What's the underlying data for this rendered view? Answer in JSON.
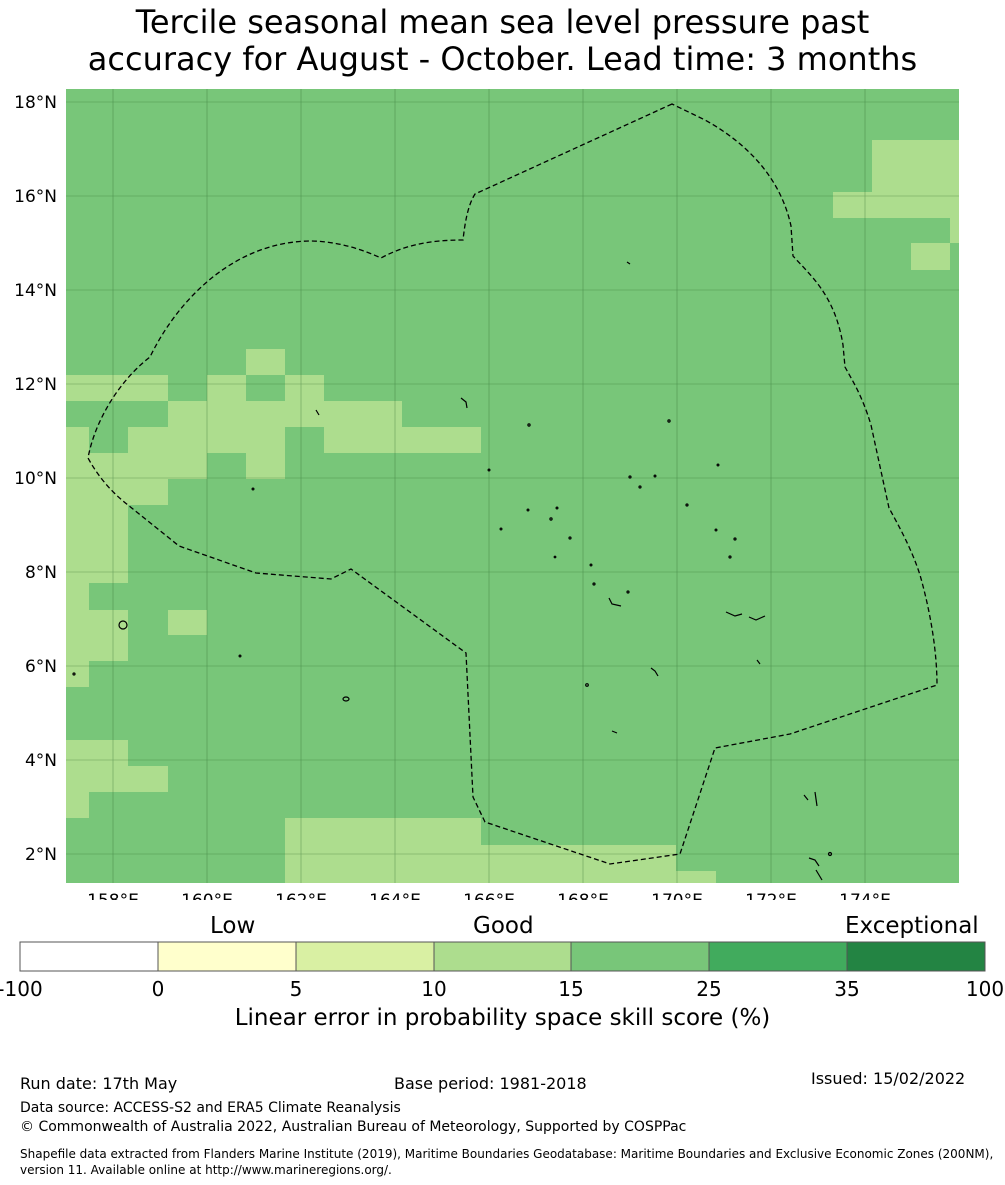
{
  "title_line1": "Tercile seasonal mean sea level pressure past",
  "title_line2": "accuracy for August - October. Lead time: 3 months",
  "map": {
    "lat_labels": [
      "18°N",
      "16°N",
      "14°N",
      "12°N",
      "10°N",
      "8°N",
      "6°N",
      "4°N",
      "2°N"
    ],
    "lon_labels": [
      "158°E",
      "160°E",
      "162°E",
      "164°E",
      "166°E",
      "168°E",
      "170°E",
      "172°E",
      "174°E"
    ],
    "background_category": "15-25",
    "colors": {
      "15-25": "#78c679",
      "10-15": "#addd8e"
    },
    "grid_color": "#2f6b2f",
    "boundary_style": "dashed"
  },
  "legend": {
    "words": {
      "low": "Low",
      "good": "Good",
      "exceptional": "Exceptional"
    },
    "ticks": [
      "-100",
      "0",
      "5",
      "10",
      "15",
      "25",
      "35",
      "100"
    ],
    "colors": [
      "#ffffff",
      "#ffffcc",
      "#d9f0a3",
      "#addd8e",
      "#78c679",
      "#41ab5d",
      "#238443"
    ],
    "label": "Linear error in probability space skill score (%)"
  },
  "footer": {
    "run_date": "Run date: 17th May",
    "base_period": "Base period: 1981-2018",
    "issued": "Issued: 15/02/2022",
    "data_source": "Data source: ACCESS-S2 and ERA5 Climate Reanalysis",
    "copyright": "© Commonwealth of Australia 2022, Australian Bureau of Meteorology, Supported by COSPPac",
    "shapefile_line1": "Shapefile data extracted from Flanders Marine Institute (2019), Maritime Boundaries Geodatabase: Maritime Boundaries and Exclusive Economic Zones (200NM),",
    "shapefile_line2": "version 11. Available online at http://www.marineregions.org/."
  }
}
